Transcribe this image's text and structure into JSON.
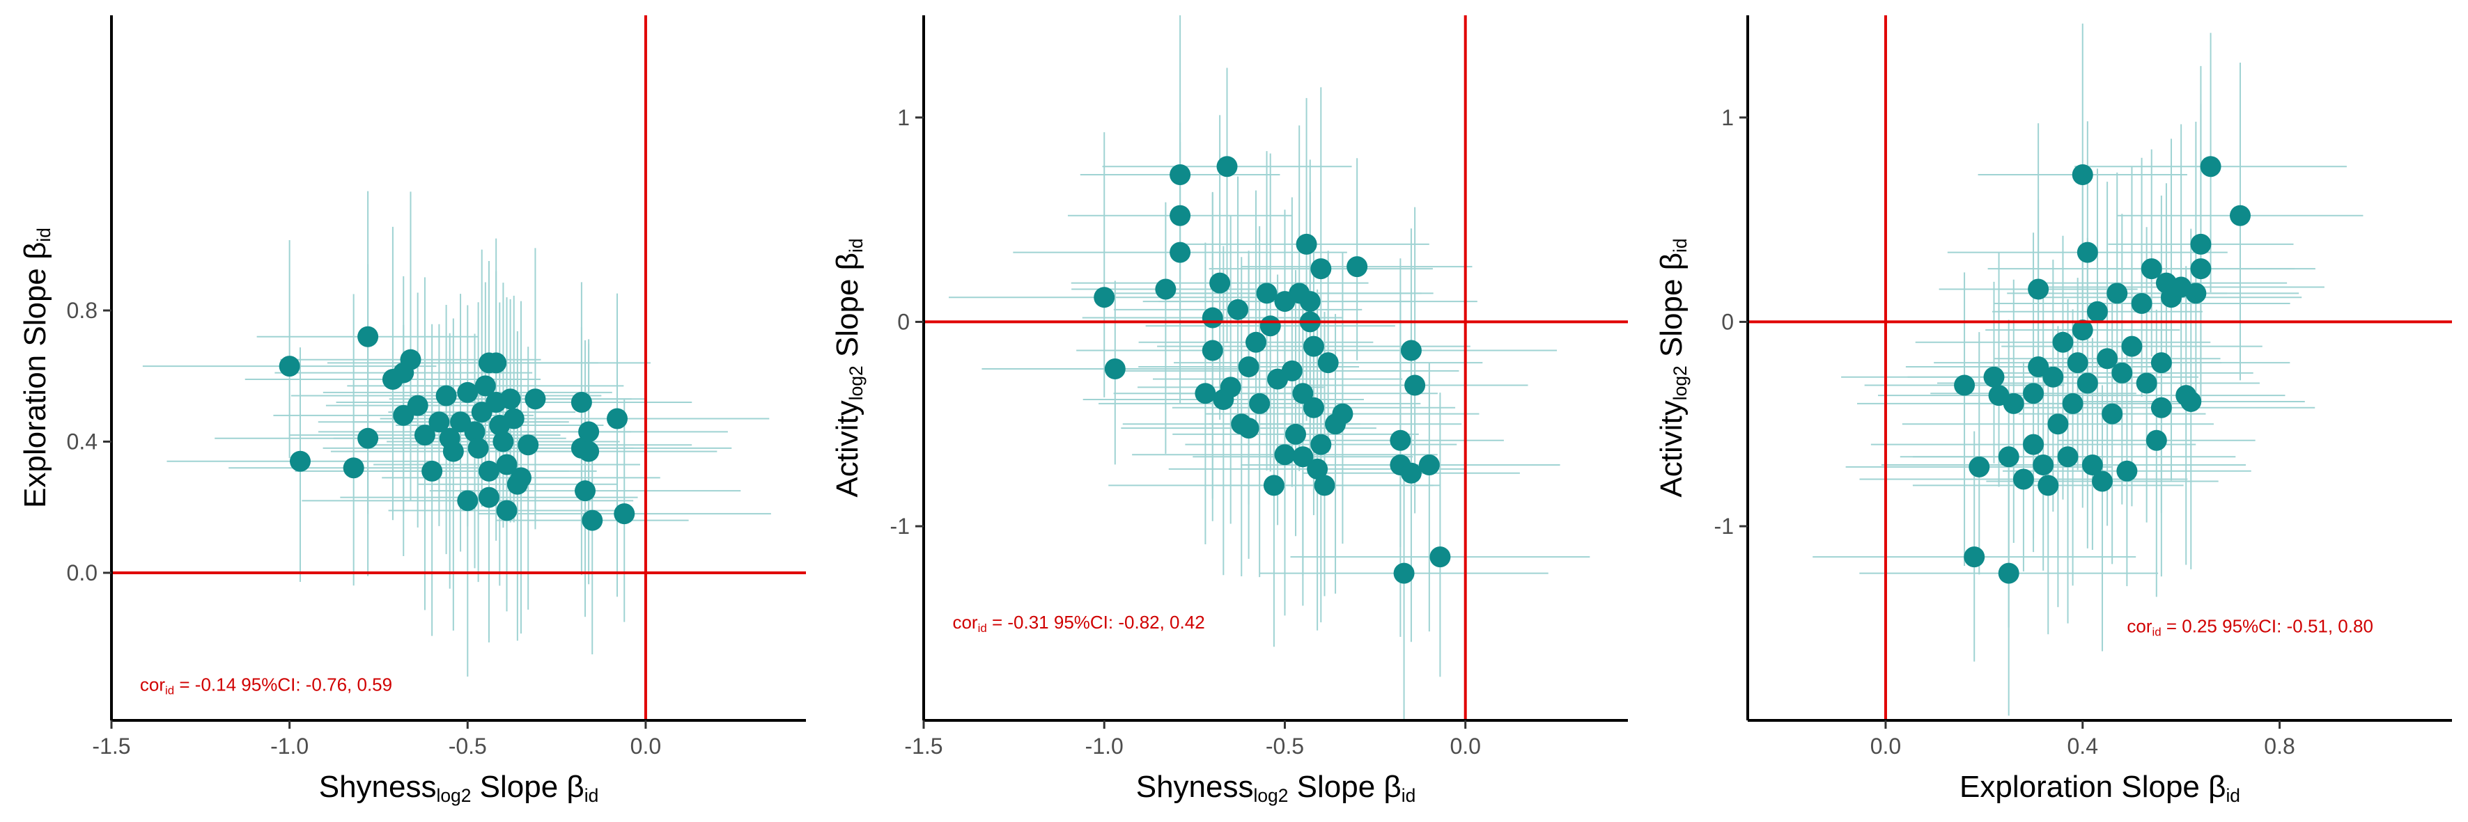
{
  "colors": {
    "point": "#0e8a8a",
    "errorbar": "#9fd3d3",
    "refline": "#e00000",
    "annotation": "#d00000",
    "axis": "#000000"
  },
  "chart_data": [
    {
      "type": "scatter",
      "xlabel": {
        "main": "Shyness",
        "sub": "log2",
        "rest": " Slope β",
        "rest_sub": "id"
      },
      "ylabel": {
        "main": "Exploration Slope β",
        "sub": "",
        "rest": "",
        "rest_sub": "id"
      },
      "xlim": [
        -1.5,
        0.45
      ],
      "ylim": [
        -0.45,
        1.7
      ],
      "xticks": [
        -1.5,
        -1.0,
        -0.5,
        0.0
      ],
      "xtick_labels": [
        "-1.5",
        "-1.0",
        "-0.5",
        "0.0"
      ],
      "yticks": [
        0.0,
        0.4,
        0.8
      ],
      "ytick_labels": [
        "0.0",
        "0.4",
        "0.8"
      ],
      "reflines": {
        "x": 0.0,
        "y": 0.0
      },
      "annotation": {
        "label": "cor",
        "sub": "id",
        "value": " =  -0.14  95%CI: -0.76, 0.59",
        "x": -1.42,
        "y": -0.36
      },
      "points": [
        {
          "x": -1.0,
          "y": 0.63
        },
        {
          "x": -0.97,
          "y": 0.34
        },
        {
          "x": -0.82,
          "y": 0.32
        },
        {
          "x": -0.78,
          "y": 0.72
        },
        {
          "x": -0.78,
          "y": 0.41
        },
        {
          "x": -0.71,
          "y": 0.59
        },
        {
          "x": -0.68,
          "y": 0.61
        },
        {
          "x": -0.66,
          "y": 0.65
        },
        {
          "x": -0.68,
          "y": 0.48
        },
        {
          "x": -0.64,
          "y": 0.51
        },
        {
          "x": -0.62,
          "y": 0.42
        },
        {
          "x": -0.6,
          "y": 0.31
        },
        {
          "x": -0.58,
          "y": 0.46
        },
        {
          "x": -0.56,
          "y": 0.54
        },
        {
          "x": -0.55,
          "y": 0.41
        },
        {
          "x": -0.54,
          "y": 0.37
        },
        {
          "x": -0.52,
          "y": 0.46
        },
        {
          "x": -0.5,
          "y": 0.22
        },
        {
          "x": -0.5,
          "y": 0.55
        },
        {
          "x": -0.48,
          "y": 0.43
        },
        {
          "x": -0.47,
          "y": 0.38
        },
        {
          "x": -0.46,
          "y": 0.49
        },
        {
          "x": -0.45,
          "y": 0.57
        },
        {
          "x": -0.44,
          "y": 0.64
        },
        {
          "x": -0.44,
          "y": 0.31
        },
        {
          "x": -0.44,
          "y": 0.23
        },
        {
          "x": -0.42,
          "y": 0.64
        },
        {
          "x": -0.42,
          "y": 0.52
        },
        {
          "x": -0.41,
          "y": 0.45
        },
        {
          "x": -0.4,
          "y": 0.4
        },
        {
          "x": -0.39,
          "y": 0.33
        },
        {
          "x": -0.39,
          "y": 0.19
        },
        {
          "x": -0.38,
          "y": 0.53
        },
        {
          "x": -0.37,
          "y": 0.47
        },
        {
          "x": -0.36,
          "y": 0.27
        },
        {
          "x": -0.35,
          "y": 0.29
        },
        {
          "x": -0.33,
          "y": 0.39
        },
        {
          "x": -0.31,
          "y": 0.53
        },
        {
          "x": -0.18,
          "y": 0.52
        },
        {
          "x": -0.18,
          "y": 0.38
        },
        {
          "x": -0.17,
          "y": 0.25
        },
        {
          "x": -0.16,
          "y": 0.43
        },
        {
          "x": -0.15,
          "y": 0.16
        },
        {
          "x": -0.16,
          "y": 0.37
        },
        {
          "x": -0.08,
          "y": 0.47
        },
        {
          "x": -0.06,
          "y": 0.18
        }
      ]
    },
    {
      "type": "scatter",
      "xlabel": {
        "main": "Shyness",
        "sub": "log2",
        "rest": " Slope β",
        "rest_sub": "id"
      },
      "ylabel": {
        "main": "Activity",
        "sub": "log2",
        "rest": " Slope β",
        "rest_sub": "id"
      },
      "xlim": [
        -1.5,
        0.45
      ],
      "ylim": [
        -1.95,
        1.5
      ],
      "xticks": [
        -1.5,
        -1.0,
        -0.5,
        0.0
      ],
      "xtick_labels": [
        "-1.5",
        "-1.0",
        "-0.5",
        "0.0"
      ],
      "yticks": [
        -1,
        0,
        1
      ],
      "ytick_labels": [
        "-1",
        "0",
        "1"
      ],
      "reflines": {
        "x": 0.0,
        "y": 0.0
      },
      "annotation": {
        "label": "cor",
        "sub": "id",
        "value": " =  -0.31  95%CI: -0.82, 0.42",
        "x": -1.42,
        "y": -1.5
      },
      "points": [
        {
          "x": -1.0,
          "y": 0.12
        },
        {
          "x": -0.97,
          "y": -0.23
        },
        {
          "x": -0.83,
          "y": 0.16
        },
        {
          "x": -0.79,
          "y": 0.72
        },
        {
          "x": -0.79,
          "y": 0.52
        },
        {
          "x": -0.79,
          "y": 0.34
        },
        {
          "x": -0.66,
          "y": 0.76
        },
        {
          "x": -0.72,
          "y": -0.35
        },
        {
          "x": -0.7,
          "y": 0.02
        },
        {
          "x": -0.7,
          "y": -0.14
        },
        {
          "x": -0.68,
          "y": 0.19
        },
        {
          "x": -0.67,
          "y": -0.38
        },
        {
          "x": -0.65,
          "y": -0.32
        },
        {
          "x": -0.63,
          "y": 0.06
        },
        {
          "x": -0.62,
          "y": -0.5
        },
        {
          "x": -0.6,
          "y": -0.22
        },
        {
          "x": -0.6,
          "y": -0.52
        },
        {
          "x": -0.58,
          "y": -0.1
        },
        {
          "x": -0.57,
          "y": -0.4
        },
        {
          "x": -0.55,
          "y": 0.14
        },
        {
          "x": -0.54,
          "y": -0.02
        },
        {
          "x": -0.53,
          "y": -0.8
        },
        {
          "x": -0.52,
          "y": -0.28
        },
        {
          "x": -0.5,
          "y": -0.65
        },
        {
          "x": -0.5,
          "y": 0.1
        },
        {
          "x": -0.48,
          "y": -0.24
        },
        {
          "x": -0.47,
          "y": -0.55
        },
        {
          "x": -0.46,
          "y": 0.14
        },
        {
          "x": -0.45,
          "y": -0.35
        },
        {
          "x": -0.45,
          "y": -0.66
        },
        {
          "x": -0.44,
          "y": 0.38
        },
        {
          "x": -0.43,
          "y": 0.1
        },
        {
          "x": -0.43,
          "y": 0.0
        },
        {
          "x": -0.42,
          "y": -0.12
        },
        {
          "x": -0.42,
          "y": -0.42
        },
        {
          "x": -0.41,
          "y": -0.72
        },
        {
          "x": -0.4,
          "y": 0.26
        },
        {
          "x": -0.4,
          "y": -0.6
        },
        {
          "x": -0.39,
          "y": -0.8
        },
        {
          "x": -0.38,
          "y": -0.2
        },
        {
          "x": -0.36,
          "y": -0.5
        },
        {
          "x": -0.34,
          "y": -0.45
        },
        {
          "x": -0.3,
          "y": 0.27
        },
        {
          "x": -0.18,
          "y": -0.58
        },
        {
          "x": -0.18,
          "y": -0.7
        },
        {
          "x": -0.17,
          "y": -1.23
        },
        {
          "x": -0.15,
          "y": -0.14
        },
        {
          "x": -0.14,
          "y": -0.31
        },
        {
          "x": -0.15,
          "y": -0.74
        },
        {
          "x": -0.1,
          "y": -0.7
        },
        {
          "x": -0.07,
          "y": -1.15
        }
      ]
    },
    {
      "type": "scatter",
      "xlabel": {
        "main": "Exploration Slope β",
        "sub": "",
        "rest": "",
        "rest_sub": "id"
      },
      "ylabel": {
        "main": "Activity",
        "sub": "log2",
        "rest": " Slope β",
        "rest_sub": "id"
      },
      "xlim": [
        -0.28,
        1.15
      ],
      "ylim": [
        -1.95,
        1.5
      ],
      "xticks": [
        0.0,
        0.4,
        0.8
      ],
      "xtick_labels": [
        "0.0",
        "0.4",
        "0.8"
      ],
      "yticks": [
        -1,
        0,
        1
      ],
      "ytick_labels": [
        "-1",
        "0",
        "1"
      ],
      "reflines": {
        "x": 0.0,
        "y": 0.0
      },
      "annotation": {
        "label": "cor",
        "sub": "id",
        "value": " =  0.25  95%CI: -0.51, 0.80",
        "x": 0.49,
        "y": -1.52
      },
      "points": [
        {
          "x": 0.16,
          "y": -0.31
        },
        {
          "x": 0.18,
          "y": -1.15
        },
        {
          "x": 0.19,
          "y": -0.71
        },
        {
          "x": 0.22,
          "y": -0.27
        },
        {
          "x": 0.23,
          "y": -0.36
        },
        {
          "x": 0.25,
          "y": -1.23
        },
        {
          "x": 0.25,
          "y": -0.66
        },
        {
          "x": 0.26,
          "y": -0.4
        },
        {
          "x": 0.28,
          "y": -0.77
        },
        {
          "x": 0.3,
          "y": -0.35
        },
        {
          "x": 0.3,
          "y": -0.6
        },
        {
          "x": 0.31,
          "y": 0.16
        },
        {
          "x": 0.31,
          "y": -0.22
        },
        {
          "x": 0.32,
          "y": -0.7
        },
        {
          "x": 0.33,
          "y": -0.8
        },
        {
          "x": 0.34,
          "y": -0.27
        },
        {
          "x": 0.35,
          "y": -0.5
        },
        {
          "x": 0.36,
          "y": -0.1
        },
        {
          "x": 0.37,
          "y": -0.66
        },
        {
          "x": 0.38,
          "y": -0.4
        },
        {
          "x": 0.39,
          "y": -0.2
        },
        {
          "x": 0.4,
          "y": 0.72
        },
        {
          "x": 0.4,
          "y": -0.04
        },
        {
          "x": 0.41,
          "y": 0.34
        },
        {
          "x": 0.41,
          "y": -0.3
        },
        {
          "x": 0.42,
          "y": -0.7
        },
        {
          "x": 0.43,
          "y": 0.05
        },
        {
          "x": 0.44,
          "y": -0.78
        },
        {
          "x": 0.45,
          "y": -0.18
        },
        {
          "x": 0.46,
          "y": -0.45
        },
        {
          "x": 0.47,
          "y": 0.14
        },
        {
          "x": 0.48,
          "y": -0.25
        },
        {
          "x": 0.49,
          "y": -0.73
        },
        {
          "x": 0.5,
          "y": -0.12
        },
        {
          "x": 0.52,
          "y": 0.09
        },
        {
          "x": 0.53,
          "y": -0.3
        },
        {
          "x": 0.54,
          "y": 0.26
        },
        {
          "x": 0.55,
          "y": -0.58
        },
        {
          "x": 0.56,
          "y": -0.2
        },
        {
          "x": 0.57,
          "y": 0.19
        },
        {
          "x": 0.58,
          "y": 0.12
        },
        {
          "x": 0.6,
          "y": 0.17
        },
        {
          "x": 0.61,
          "y": -0.36
        },
        {
          "x": 0.62,
          "y": -0.39
        },
        {
          "x": 0.63,
          "y": 0.14
        },
        {
          "x": 0.64,
          "y": 0.26
        },
        {
          "x": 0.64,
          "y": 0.38
        },
        {
          "x": 0.66,
          "y": 0.76
        },
        {
          "x": 0.72,
          "y": 0.52
        },
        {
          "x": 0.56,
          "y": -0.42
        }
      ]
    }
  ]
}
